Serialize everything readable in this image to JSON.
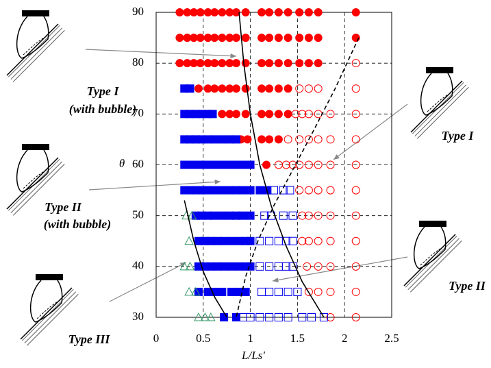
{
  "chart_data": {
    "type": "scatter",
    "xlabel": "L/Ls'",
    "ylabel": "θ",
    "xlim": [
      0,
      2.5
    ],
    "ylim": [
      30,
      90
    ],
    "xticks": [
      0,
      0.5,
      1,
      1.5,
      2,
      2.5
    ],
    "yticks": [
      30,
      40,
      50,
      60,
      70,
      80,
      90
    ],
    "grid": true,
    "series": [
      {
        "marker": "circle",
        "filled": true,
        "color": "#ff0000",
        "x": [
          0.25,
          0.33,
          0.4,
          0.47,
          0.55,
          0.62,
          0.7,
          0.78,
          0.85,
          0.95,
          1.12,
          1.2,
          1.3,
          1.4,
          1.52,
          1.62,
          1.72,
          2.12,
          0.25,
          0.33,
          0.4,
          0.47,
          0.55,
          0.62,
          0.7,
          0.78,
          0.85,
          0.95,
          1.12,
          1.2,
          1.3,
          1.4,
          1.52,
          1.62,
          1.72,
          2.12,
          0.25,
          0.33,
          0.4,
          0.47,
          0.55,
          0.62,
          0.7,
          0.78,
          0.85,
          0.95,
          1.12,
          1.2,
          1.3,
          1.4,
          1.52,
          1.62,
          1.72,
          0.45,
          0.55,
          0.62,
          0.7,
          0.78,
          0.85,
          0.95,
          1.12,
          1.2,
          1.3,
          1.4,
          0.7,
          0.78,
          0.85,
          0.95,
          1.12,
          1.2,
          1.3,
          1.4,
          0.9,
          0.97,
          1.12,
          1.2,
          1.3,
          1.17
        ],
        "values": [
          90,
          90,
          90,
          90,
          90,
          90,
          90,
          90,
          90,
          90,
          90,
          90,
          90,
          90,
          90,
          90,
          90,
          90,
          85,
          85,
          85,
          85,
          85,
          85,
          85,
          85,
          85,
          85,
          85,
          85,
          85,
          85,
          85,
          85,
          85,
          85,
          80,
          80,
          80,
          80,
          80,
          80,
          80,
          80,
          80,
          80,
          80,
          80,
          80,
          80,
          80,
          80,
          80,
          75,
          75,
          75,
          75,
          75,
          75,
          75,
          75,
          75,
          75,
          75,
          70,
          70,
          70,
          70,
          70,
          70,
          70,
          70,
          65,
          65,
          65,
          65,
          65,
          60
        ]
      },
      {
        "marker": "circle",
        "filled": false,
        "color": "#ff0000",
        "x": [
          2.12,
          1.52,
          1.62,
          1.72,
          2.12,
          1.48,
          1.55,
          1.62,
          1.72,
          1.85,
          2.12,
          1.4,
          1.52,
          1.62,
          1.72,
          1.85,
          2.12,
          1.3,
          1.38,
          1.45,
          1.52,
          1.62,
          1.72,
          1.85,
          2.12,
          1.52,
          1.62,
          1.72,
          1.85,
          2.12,
          1.55,
          1.62,
          1.72,
          1.85,
          2.12,
          1.55,
          1.62,
          1.72,
          1.85,
          2.12,
          1.6,
          1.72,
          1.85,
          2.12,
          1.62,
          1.72,
          1.85,
          2.12,
          1.85,
          2.12
        ],
        "values": [
          80,
          75,
          75,
          75,
          75,
          70,
          70,
          70,
          70,
          70,
          70,
          65,
          65,
          65,
          65,
          65,
          65,
          60,
          60,
          60,
          60,
          60,
          60,
          60,
          60,
          55,
          55,
          55,
          55,
          55,
          50,
          50,
          50,
          50,
          50,
          45,
          45,
          45,
          45,
          45,
          40,
          40,
          40,
          40,
          35,
          35,
          35,
          35,
          30,
          30
        ]
      },
      {
        "marker": "square",
        "filled": true,
        "color": "#0000ee",
        "x": [
          0.3,
          0.36,
          0.3,
          0.36,
          0.42,
          0.48,
          0.55,
          0.6,
          0.3,
          0.36,
          0.42,
          0.48,
          0.55,
          0.62,
          0.7,
          0.78,
          0.85,
          0.3,
          0.36,
          0.42,
          0.48,
          0.55,
          0.62,
          0.7,
          0.78,
          0.85,
          0.92,
          1.0,
          0.3,
          0.36,
          0.42,
          0.48,
          0.55,
          0.62,
          0.7,
          0.78,
          0.85,
          0.92,
          1.0,
          1.1,
          1.18,
          0.42,
          0.48,
          0.55,
          0.62,
          0.7,
          0.78,
          0.85,
          0.92,
          1.0,
          0.45,
          0.52,
          0.58,
          0.65,
          0.72,
          0.8,
          0.88,
          0.95,
          1.0,
          0.45,
          0.52,
          0.58,
          0.65,
          0.72,
          0.8,
          0.88,
          0.95,
          1.0,
          0.45,
          0.55,
          0.62,
          0.7,
          0.8,
          0.88,
          0.95,
          0.72,
          0.85
        ],
        "values": [
          75,
          75,
          70,
          70,
          70,
          70,
          70,
          70,
          65,
          65,
          65,
          65,
          65,
          65,
          65,
          65,
          65,
          60,
          60,
          60,
          60,
          60,
          60,
          60,
          60,
          60,
          60,
          60,
          55,
          55,
          55,
          55,
          55,
          55,
          55,
          55,
          55,
          55,
          55,
          55,
          55,
          50,
          50,
          50,
          50,
          50,
          50,
          50,
          50,
          50,
          45,
          45,
          45,
          45,
          45,
          45,
          45,
          45,
          45,
          40,
          40,
          40,
          40,
          40,
          40,
          40,
          40,
          40,
          35,
          35,
          35,
          35,
          35,
          35,
          35,
          30,
          30
        ]
      },
      {
        "marker": "square",
        "filled": false,
        "color": "#0000ee",
        "x": [
          1.25,
          1.35,
          1.42,
          1.15,
          1.22,
          1.35,
          1.45,
          1.1,
          1.2,
          1.3,
          1.38,
          1.45,
          1.1,
          1.2,
          1.3,
          1.38,
          1.45,
          1.12,
          1.2,
          1.3,
          1.4,
          1.5,
          0.92,
          1.0,
          1.1,
          1.2,
          1.3,
          1.4,
          1.55,
          1.65,
          1.78
        ],
        "values": [
          55,
          55,
          55,
          50,
          50,
          50,
          50,
          45,
          45,
          45,
          45,
          45,
          40,
          40,
          40,
          40,
          40,
          35,
          35,
          35,
          35,
          35,
          30,
          30,
          30,
          30,
          30,
          30,
          30,
          30,
          30
        ]
      },
      {
        "marker": "triangle",
        "filled": false,
        "color": "#339966",
        "x": [
          0.32,
          0.38,
          0.35,
          0.3,
          0.36,
          0.35,
          0.42,
          0.45,
          0.52,
          0.58
        ],
        "values": [
          50,
          50,
          45,
          40,
          40,
          35,
          35,
          30,
          30,
          30
        ]
      },
      {
        "marker": "line",
        "dash": false,
        "color": "#000000",
        "x": [
          0.88,
          0.93,
          1.0,
          1.1,
          1.22,
          1.38,
          1.55,
          1.78
        ],
        "values": [
          90,
          80,
          70,
          60,
          52,
          44,
          37,
          30
        ]
      },
      {
        "marker": "line",
        "dash": false,
        "color": "#000000",
        "x": [
          0.3,
          0.4,
          0.5,
          0.62,
          0.75
        ],
        "values": [
          53,
          45,
          39,
          34,
          30
        ]
      },
      {
        "marker": "line",
        "dash": true,
        "color": "#000000",
        "x": [
          2.15,
          1.9,
          1.65,
          1.45,
          1.25,
          1.08,
          0.95,
          0.85
        ],
        "values": [
          85,
          75,
          66,
          59,
          52,
          45,
          38,
          30
        ]
      }
    ],
    "annotations": [
      "Type I",
      "(with bubble)",
      "Type I",
      "Type II",
      "(with bubble)",
      "Type II",
      "Type III"
    ]
  }
}
